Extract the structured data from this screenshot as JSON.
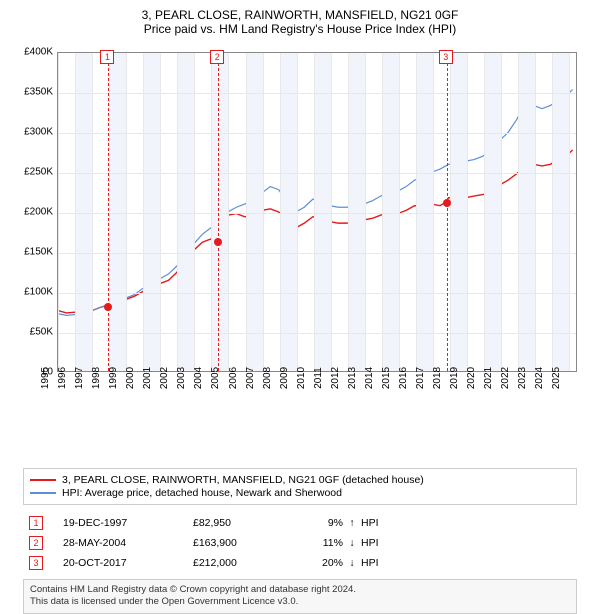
{
  "title": {
    "line1": "3, PEARL CLOSE, RAINWORTH, MANSFIELD, NG21 0GF",
    "line2": "Price paid vs. HM Land Registry's House Price Index (HPI)"
  },
  "chart": {
    "type": "line",
    "x_range": [
      1995,
      2025.5
    ],
    "y_range": [
      0,
      400000
    ],
    "y_ticks": [
      0,
      50000,
      100000,
      150000,
      200000,
      250000,
      300000,
      350000,
      400000
    ],
    "y_tick_labels": [
      "£0",
      "£50K",
      "£100K",
      "£150K",
      "£200K",
      "£250K",
      "£300K",
      "£350K",
      "£400K"
    ],
    "x_ticks": [
      1995,
      1996,
      1997,
      1998,
      1999,
      2000,
      2001,
      2002,
      2003,
      2004,
      2005,
      2006,
      2007,
      2008,
      2009,
      2010,
      2011,
      2012,
      2013,
      2014,
      2015,
      2016,
      2017,
      2018,
      2019,
      2020,
      2021,
      2022,
      2023,
      2024,
      2025
    ],
    "grid_color": "#e8e8e8",
    "band_color": "#f1f5fb",
    "background_color": "#ffffff",
    "axis_fontsize": 10,
    "series": [
      {
        "name": "price_paid",
        "color": "#e41a1c",
        "width": 1.4,
        "points": [
          [
            1995,
            76000
          ],
          [
            1995.5,
            73000
          ],
          [
            1996,
            74000
          ],
          [
            1996.5,
            73000
          ],
          [
            1997,
            76000
          ],
          [
            1997.5,
            80000
          ],
          [
            1997.96,
            82950
          ],
          [
            1998.5,
            86000
          ],
          [
            1999,
            90000
          ],
          [
            1999.5,
            94000
          ],
          [
            2000,
            100000
          ],
          [
            2000.5,
            106000
          ],
          [
            2001,
            110000
          ],
          [
            2001.5,
            114000
          ],
          [
            2002,
            124000
          ],
          [
            2002.5,
            140000
          ],
          [
            2003,
            152000
          ],
          [
            2003.5,
            162000
          ],
          [
            2004,
            166000
          ],
          [
            2004.4,
            163900
          ],
          [
            2004.8,
            182000
          ],
          [
            2005,
            196000
          ],
          [
            2005.5,
            198000
          ],
          [
            2006,
            194000
          ],
          [
            2006.5,
            196000
          ],
          [
            2007,
            202000
          ],
          [
            2007.5,
            204000
          ],
          [
            2008,
            200000
          ],
          [
            2008.5,
            188000
          ],
          [
            2009,
            180000
          ],
          [
            2009.5,
            186000
          ],
          [
            2010,
            194000
          ],
          [
            2010.5,
            194000
          ],
          [
            2011,
            188000
          ],
          [
            2011.5,
            186000
          ],
          [
            2012,
            186000
          ],
          [
            2012.5,
            188000
          ],
          [
            2013,
            190000
          ],
          [
            2013.5,
            192000
          ],
          [
            2014,
            196000
          ],
          [
            2014.5,
            200000
          ],
          [
            2015,
            198000
          ],
          [
            2015.5,
            202000
          ],
          [
            2016,
            208000
          ],
          [
            2016.5,
            206000
          ],
          [
            2017,
            210000
          ],
          [
            2017.5,
            208000
          ],
          [
            2017.8,
            212000
          ],
          [
            2018,
            218000
          ],
          [
            2018.5,
            216000
          ],
          [
            2019,
            218000
          ],
          [
            2019.5,
            220000
          ],
          [
            2020,
            222000
          ],
          [
            2020.5,
            224000
          ],
          [
            2021,
            234000
          ],
          [
            2021.5,
            240000
          ],
          [
            2022,
            248000
          ],
          [
            2022.5,
            258000
          ],
          [
            2023,
            260000
          ],
          [
            2023.5,
            258000
          ],
          [
            2024,
            260000
          ],
          [
            2024.5,
            268000
          ],
          [
            2025,
            272000
          ],
          [
            2025.3,
            278000
          ]
        ]
      },
      {
        "name": "hpi",
        "color": "#5b8fd6",
        "width": 1.2,
        "points": [
          [
            1995,
            72000
          ],
          [
            1995.5,
            70000
          ],
          [
            1996,
            71000
          ],
          [
            1996.5,
            72000
          ],
          [
            1997,
            76000
          ],
          [
            1997.5,
            80000
          ],
          [
            1998,
            84000
          ],
          [
            1998.5,
            88000
          ],
          [
            1999,
            92000
          ],
          [
            1999.5,
            96000
          ],
          [
            2000,
            104000
          ],
          [
            2000.5,
            110000
          ],
          [
            2001,
            116000
          ],
          [
            2001.5,
            122000
          ],
          [
            2002,
            132000
          ],
          [
            2002.5,
            148000
          ],
          [
            2003,
            160000
          ],
          [
            2003.5,
            172000
          ],
          [
            2004,
            180000
          ],
          [
            2004.5,
            190000
          ],
          [
            2005,
            200000
          ],
          [
            2005.5,
            206000
          ],
          [
            2006,
            210000
          ],
          [
            2006.5,
            216000
          ],
          [
            2007,
            224000
          ],
          [
            2007.5,
            232000
          ],
          [
            2008,
            228000
          ],
          [
            2008.5,
            212000
          ],
          [
            2009,
            200000
          ],
          [
            2009.5,
            206000
          ],
          [
            2010,
            216000
          ],
          [
            2010.5,
            216000
          ],
          [
            2011,
            208000
          ],
          [
            2011.5,
            206000
          ],
          [
            2012,
            206000
          ],
          [
            2012.5,
            208000
          ],
          [
            2013,
            210000
          ],
          [
            2013.5,
            214000
          ],
          [
            2014,
            220000
          ],
          [
            2014.5,
            226000
          ],
          [
            2015,
            226000
          ],
          [
            2015.5,
            232000
          ],
          [
            2016,
            240000
          ],
          [
            2016.5,
            244000
          ],
          [
            2017,
            250000
          ],
          [
            2017.5,
            254000
          ],
          [
            2018,
            260000
          ],
          [
            2018.5,
            262000
          ],
          [
            2019,
            264000
          ],
          [
            2019.5,
            266000
          ],
          [
            2020,
            270000
          ],
          [
            2020.5,
            278000
          ],
          [
            2021,
            290000
          ],
          [
            2021.5,
            300000
          ],
          [
            2022,
            316000
          ],
          [
            2022.5,
            336000
          ],
          [
            2023,
            334000
          ],
          [
            2023.5,
            330000
          ],
          [
            2024,
            334000
          ],
          [
            2024.5,
            342000
          ],
          [
            2025,
            348000
          ],
          [
            2025.3,
            354000
          ]
        ]
      }
    ],
    "markers": [
      {
        "n": "1",
        "x": 1997.96,
        "y": 82950
      },
      {
        "n": "2",
        "x": 2004.4,
        "y": 163900
      },
      {
        "n": "3",
        "x": 2017.8,
        "y": 212000
      }
    ]
  },
  "legend": {
    "items": [
      {
        "color": "#e41a1c",
        "label": "3, PEARL CLOSE, RAINWORTH, MANSFIELD, NG21 0GF (detached house)"
      },
      {
        "color": "#5b8fd6",
        "label": "HPI: Average price, detached house, Newark and Sherwood"
      }
    ]
  },
  "transactions": [
    {
      "n": "1",
      "date": "19-DEC-1997",
      "price": "£82,950",
      "pct": "9%",
      "arrow": "↑",
      "hpi": "HPI"
    },
    {
      "n": "2",
      "date": "28-MAY-2004",
      "price": "£163,900",
      "pct": "11%",
      "arrow": "↓",
      "hpi": "HPI"
    },
    {
      "n": "3",
      "date": "20-OCT-2017",
      "price": "£212,000",
      "pct": "20%",
      "arrow": "↓",
      "hpi": "HPI"
    }
  ],
  "footer": {
    "line1": "Contains HM Land Registry data © Crown copyright and database right 2024.",
    "line2": "This data is licensed under the Open Government Licence v3.0."
  }
}
